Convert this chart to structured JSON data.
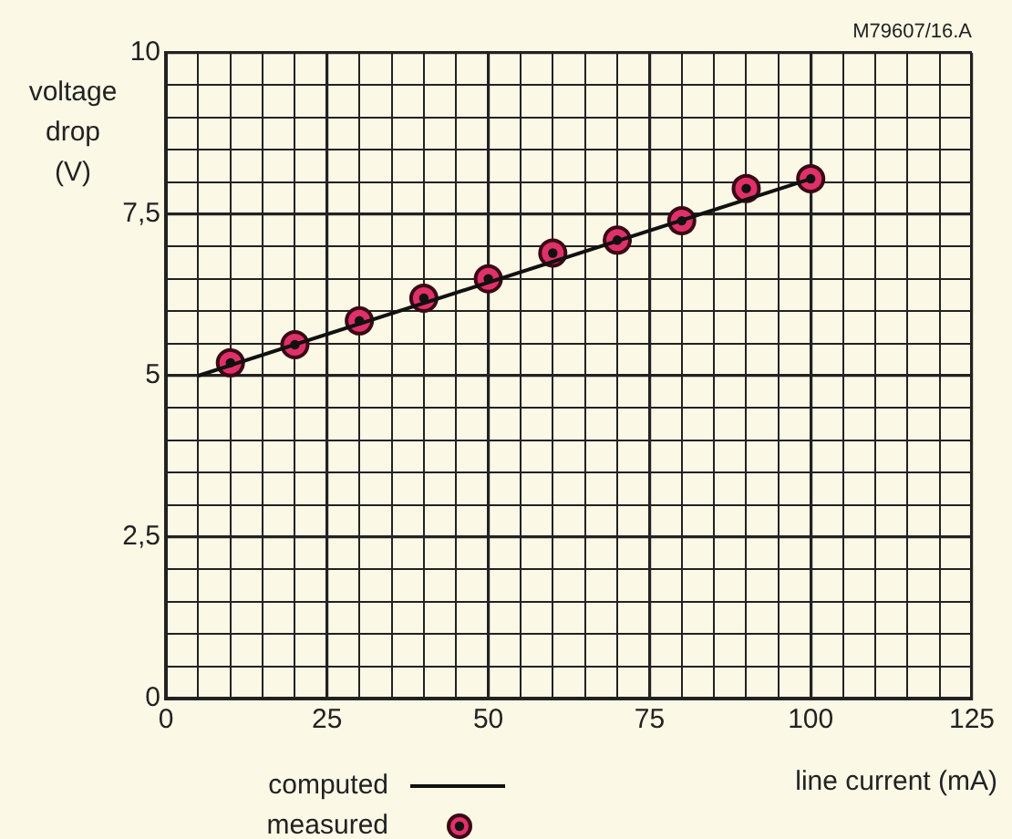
{
  "chart_data": {
    "type": "scatter",
    "xlabel": "line current (mA)",
    "ylabel": "voltage drop (V)",
    "annotations": [
      "M79607/16.A"
    ],
    "xlim": [
      0,
      125
    ],
    "xticks": [
      0,
      {
        "value": 5,
        "label": null
      },
      {
        "value": 10,
        "label": null
      },
      {
        "value": 15,
        "label": null
      },
      {
        "value": 20,
        "label": null
      },
      25,
      {
        "value": 30,
        "label": null
      },
      {
        "value": 35,
        "label": null
      },
      {
        "value": 40,
        "label": null
      },
      {
        "value": 45,
        "label": null
      },
      50,
      {
        "value": 55,
        "label": null
      },
      {
        "value": 60,
        "label": null
      },
      {
        "value": 65,
        "label": null
      },
      {
        "value": 70,
        "label": null
      },
      75,
      {
        "value": 80,
        "label": null
      },
      {
        "value": 85,
        "label": null
      },
      {
        "value": 90,
        "label": null
      },
      {
        "value": 95,
        "label": null
      },
      100,
      {
        "value": 105,
        "label": null
      },
      {
        "value": 110,
        "label": null
      },
      {
        "value": 115,
        "label": null
      },
      {
        "value": 120,
        "label": null
      },
      125
    ],
    "ylim": [
      0,
      10
    ],
    "yticks": [
      0,
      {
        "value": 0.5,
        "label": null
      },
      {
        "value": 1,
        "label": null
      },
      {
        "value": 1.5,
        "label": null
      },
      {
        "value": 2,
        "label": null
      },
      {
        "value": 2.5,
        "label": "2,5"
      },
      {
        "value": 3,
        "label": null
      },
      {
        "value": 3.5,
        "label": null
      },
      {
        "value": 4,
        "label": null
      },
      {
        "value": 4.5,
        "label": null
      },
      5,
      {
        "value": 5.5,
        "label": null
      },
      {
        "value": 6,
        "label": null
      },
      {
        "value": 6.5,
        "label": null
      },
      {
        "value": 7,
        "label": null
      },
      {
        "value": 7.5,
        "label": "7,5"
      },
      {
        "value": 8,
        "label": null
      },
      {
        "value": 8.5,
        "label": null
      },
      {
        "value": 9,
        "label": null
      },
      {
        "value": 9.5,
        "label": null
      },
      10
    ],
    "grid": true,
    "legend": "bottom",
    "series": [
      {
        "name": "computed",
        "type": "line",
        "color": "#111111",
        "line_style": "solid",
        "x": [
          5,
          100
        ],
        "values": [
          5,
          8.05
        ]
      },
      {
        "name": "measured",
        "color": "#e0306a",
        "marker": "circle",
        "x": [
          10,
          20,
          30,
          40,
          50,
          60,
          70,
          80,
          90,
          100
        ],
        "values": [
          5.2,
          5.48,
          5.85,
          6.2,
          6.5,
          6.9,
          7.1,
          7.4,
          7.9,
          8.05
        ]
      }
    ]
  }
}
